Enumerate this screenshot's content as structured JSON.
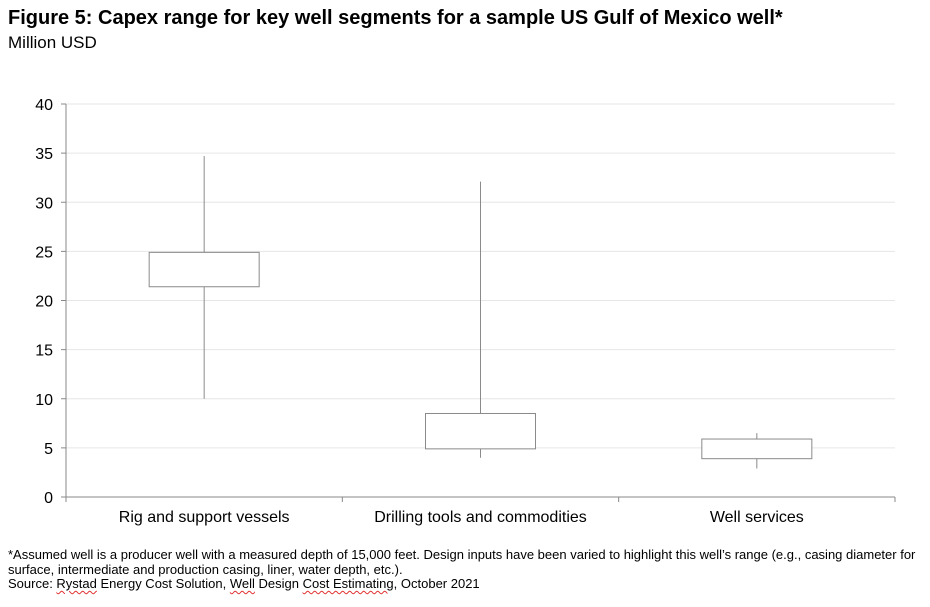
{
  "title": "Figure 5: Capex range for key well segments for a sample US Gulf of Mexico well*",
  "subtitle": "Million USD",
  "footnote": "*Assumed well is a producer well with a measured depth of 15,000 feet. Design inputs have been varied to highlight this well’s range (e.g., casing diameter for surface, intermediate and production casing, liner, water depth, etc.).",
  "source": {
    "prefix": "Source: ",
    "publisher_1": "Rystad",
    "publisher_2": " Energy Cost Solution, ",
    "tool_1": "Well",
    "tool_2": " Design ",
    "tool_3": "Cost Estimating",
    "date": ", October 2021"
  },
  "chart_data": {
    "type": "box",
    "ylim": [
      0,
      40
    ],
    "yticks": [
      0,
      5,
      10,
      15,
      20,
      25,
      30,
      35,
      40
    ],
    "grid": true,
    "categories": [
      "Rig and support vessels",
      "Drilling tools and commodities",
      "Well services"
    ],
    "boxes": [
      {
        "min": 10.0,
        "q1": 21.4,
        "q3": 24.9,
        "max": 34.7
      },
      {
        "min": 4.0,
        "q1": 4.9,
        "q3": 8.5,
        "max": 32.1
      },
      {
        "min": 2.9,
        "q1": 3.9,
        "q3": 5.9,
        "max": 6.5
      }
    ],
    "colors": {
      "box_stroke": "#8a8a8a",
      "grid": "#e6e6e6",
      "axis": "#888888"
    }
  }
}
